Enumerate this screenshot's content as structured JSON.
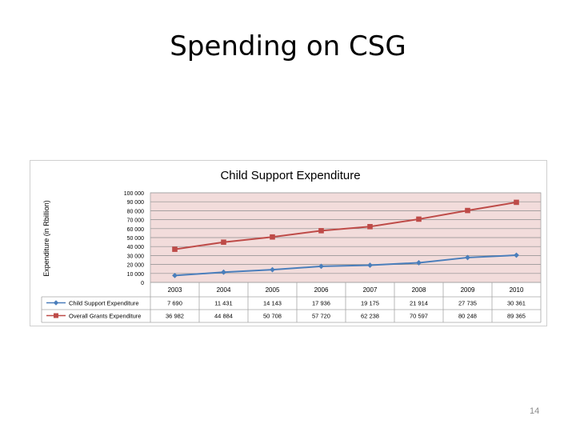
{
  "slide": {
    "title": "Spending on CSG",
    "page_number": "14"
  },
  "chart_data": {
    "type": "line",
    "title": "Child Support Expenditure",
    "xlabel": "",
    "ylabel": "Expenditure (in Rbillion)",
    "ylim": [
      0,
      100000
    ],
    "y_ticks": [
      "100 000",
      "90 000",
      "80 000",
      "70 000",
      "60 000",
      "50 000",
      "40 000",
      "30 000",
      "20 000",
      "10 000",
      "0"
    ],
    "categories": [
      "2003",
      "2004",
      "2005",
      "2006",
      "2007",
      "2008",
      "2009",
      "2010"
    ],
    "grid": true,
    "data_table": true,
    "series": [
      {
        "name": "Child Support Expenditure",
        "color": "#4a7ebb",
        "marker": "diamond",
        "values": [
          7690,
          11431,
          14143,
          17936,
          19175,
          21914,
          27735,
          30361
        ],
        "labels": [
          "7 690",
          "11 431",
          "14 143",
          "17 936",
          "19 175",
          "21 914",
          "27 735",
          "30 361"
        ]
      },
      {
        "name": "Overall Grants Expenditure",
        "color": "#be4b48",
        "marker": "square",
        "values": [
          36982,
          44884,
          50708,
          57720,
          62238,
          70597,
          80248,
          89365
        ],
        "labels": [
          "36 982",
          "44 884",
          "50 708",
          "57 720",
          "62 238",
          "70 597",
          "80 248",
          "89 365"
        ]
      }
    ],
    "colors": {
      "plot_background": "#f2dcdb",
      "gridline": "#8c8c8c",
      "table_border": "#a6a6a6"
    }
  }
}
